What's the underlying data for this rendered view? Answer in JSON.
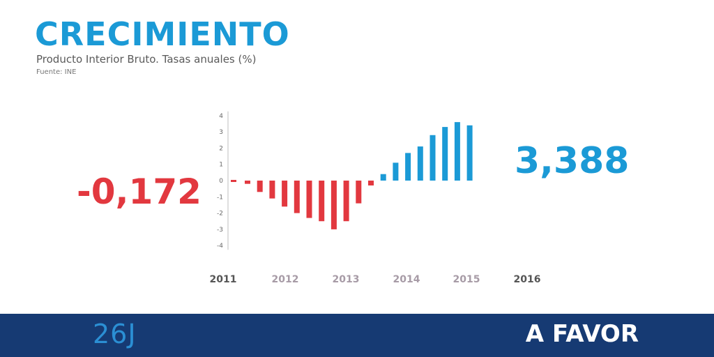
{
  "header": {
    "title": "CRECIMIENTO",
    "subtitle": "Producto Interior Bruto. Tasas anuales (%)",
    "source": "Fuente: INE"
  },
  "highlights": {
    "start_value": "-0,172",
    "end_value": "3,388"
  },
  "footer": {
    "logo_text": "26J",
    "slogan": "A FAVOR"
  },
  "colors": {
    "primary_blue": "#1b9ad6",
    "negative_red": "#e2383f",
    "footer_navy": "#163a73",
    "axis_gray": "#bfbfbf"
  },
  "chart_data": {
    "type": "bar",
    "title": "CRECIMIENTO",
    "subtitle": "Producto Interior Bruto. Tasas anuales (%)",
    "ylim": [
      -4,
      4
    ],
    "y_ticks": [
      4,
      3,
      2,
      1,
      0,
      -1,
      -2,
      -3,
      -4
    ],
    "x_labels": [
      "2011",
      "2012",
      "2013",
      "2014",
      "2015",
      "2016"
    ],
    "values": [
      -0.2,
      -0.7,
      -1.1,
      -1.6,
      -2.0,
      -2.3,
      -2.5,
      -3.0,
      -2.5,
      -1.4,
      -0.3,
      0.4,
      1.1,
      1.7,
      2.1,
      2.8,
      3.3,
      3.6,
      3.4
    ],
    "grid": false,
    "legend": "none"
  }
}
